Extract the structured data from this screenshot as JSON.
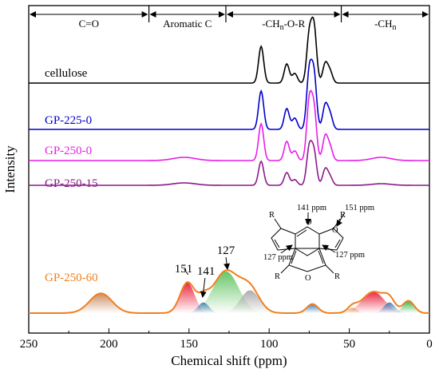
{
  "chart_data": {
    "type": "line",
    "xlabel": "Chemical shift (ppm)",
    "ylabel": "Intensity",
    "xlim": [
      250,
      0
    ],
    "x_ticks": [
      250,
      200,
      150,
      100,
      50,
      0
    ],
    "regions": [
      {
        "label": "C=O",
        "from": 250,
        "to": 175
      },
      {
        "label": "Aromatic C",
        "from": 175,
        "to": 127
      },
      {
        "label": "-CH",
        "sub": "n",
        "label_tail": "-O-R",
        "from": 127,
        "to": 55
      },
      {
        "label": "-CH",
        "sub": "n",
        "label_tail": "",
        "from": 55,
        "to": 0
      }
    ],
    "series": [
      {
        "name": "cellulose",
        "color": "#000000",
        "baseline_rank": 0,
        "peaks": [
          [
            105,
            46
          ],
          [
            89,
            24
          ],
          [
            84,
            12
          ],
          [
            75,
            58
          ],
          [
            72,
            68
          ],
          [
            65,
            24
          ],
          [
            62,
            14
          ]
        ]
      },
      {
        "name": "GP-225-0",
        "color": "#0000cc",
        "baseline_rank": 1,
        "peaks": [
          [
            105,
            48
          ],
          [
            89,
            26
          ],
          [
            84,
            14
          ],
          [
            75,
            70
          ],
          [
            72,
            66
          ],
          [
            65,
            30
          ],
          [
            62,
            18
          ]
        ]
      },
      {
        "name": "GP-250-0",
        "color": "#e81ee8",
        "baseline_rank": 2,
        "peaks": [
          [
            153,
            4
          ],
          [
            105,
            46
          ],
          [
            89,
            24
          ],
          [
            84,
            12
          ],
          [
            75,
            72
          ],
          [
            72,
            62
          ],
          [
            65,
            30
          ],
          [
            62,
            16
          ],
          [
            30,
            4
          ]
        ]
      },
      {
        "name": "GP-250-15",
        "color": "#8b1a8b",
        "baseline_rank": 3,
        "peaks": [
          [
            153,
            3
          ],
          [
            105,
            30
          ],
          [
            89,
            16
          ],
          [
            84,
            7
          ],
          [
            75,
            46
          ],
          [
            72,
            40
          ],
          [
            65,
            20
          ],
          [
            62,
            10
          ],
          [
            30,
            2
          ]
        ]
      },
      {
        "name": "GP-250-60",
        "color": "#f07f1e",
        "baseline_rank": 4,
        "peaks": [
          [
            205,
            26
          ],
          [
            151,
            45
          ],
          [
            141,
            14
          ],
          [
            127,
            57
          ],
          [
            112,
            30
          ],
          [
            73,
            12
          ],
          [
            48,
            7
          ],
          [
            35,
            28
          ],
          [
            25,
            18
          ],
          [
            13,
            16
          ]
        ]
      }
    ],
    "deconvolution": [
      {
        "center": 205,
        "height": 26,
        "sigma": 7,
        "color": "#c9885b"
      },
      {
        "center": 151,
        "height": 40,
        "sigma": 4.5,
        "color": "#e8203a"
      },
      {
        "center": 141,
        "height": 14,
        "sigma": 3.5,
        "color": "#3a7ab8"
      },
      {
        "center": 127,
        "height": 55,
        "sigma": 8,
        "color": "#5fc35f"
      },
      {
        "center": 112,
        "height": 30,
        "sigma": 6,
        "color": "#a8a8a8"
      },
      {
        "center": 73,
        "height": 12,
        "sigma": 3.5,
        "color": "#3a7ab8"
      },
      {
        "center": 48,
        "height": 7,
        "sigma": 3,
        "color": "#e8a068"
      },
      {
        "center": 35,
        "height": 28,
        "sigma": 7,
        "color": "#e8203a"
      },
      {
        "center": 25,
        "height": 14,
        "sigma": 3.5,
        "color": "#3a7ab8"
      },
      {
        "center": 13,
        "height": 16,
        "sigma": 3.5,
        "color": "#2fb040"
      }
    ],
    "peak_annotations": [
      "151",
      "141",
      "127"
    ],
    "structure_labels": {
      "ppm141": "141 ppm",
      "ppm151": "151 ppm",
      "ppm127a": "127 ppm",
      "ppm127b": "127 ppm",
      "r": "R"
    },
    "grid": false
  }
}
